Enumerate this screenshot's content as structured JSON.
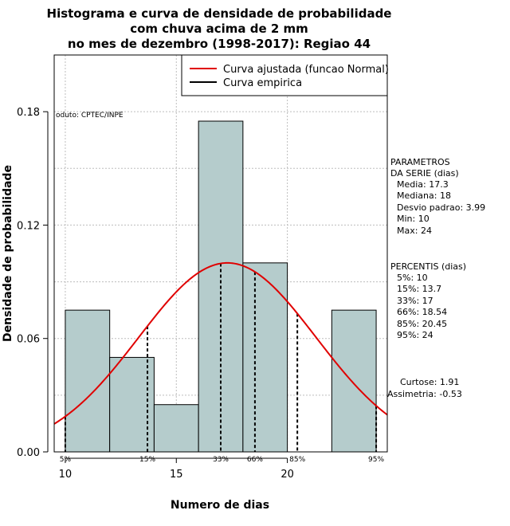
{
  "chart_data": {
    "type": "bar",
    "title_lines": [
      "Histograma e curva de densidade de probabilidade",
      "com chuva acima de 2 mm",
      "no mes de dezembro (1998-2017): Regiao 44"
    ],
    "xlabel": "Numero de dias",
    "ylabel": "Densidade de probabilidade",
    "xlim": [
      9.5,
      24.5
    ],
    "ylim": [
      0,
      0.21
    ],
    "x_ticks": [
      10,
      15,
      20
    ],
    "y_ticks": [
      0.0,
      0.06,
      0.12,
      0.18
    ],
    "y_tick_labels": [
      "0.00",
      "0.06",
      "0.12",
      "0.18"
    ],
    "grid": true,
    "bins": [
      {
        "start": 10,
        "end": 12,
        "density": 0.075
      },
      {
        "start": 12,
        "end": 14,
        "density": 0.05
      },
      {
        "start": 14,
        "end": 16,
        "density": 0.025
      },
      {
        "start": 16,
        "end": 18,
        "density": 0.175
      },
      {
        "start": 18,
        "end": 20,
        "density": 0.1
      },
      {
        "start": 20,
        "end": 22,
        "density": 0
      },
      {
        "start": 22,
        "end": 24,
        "density": 0.075
      }
    ],
    "bar_color": "#b5cccc",
    "curve_color": "#e00000",
    "normal_fit": {
      "mean": 17.3,
      "sd": 3.99
    },
    "percentile_lines": [
      {
        "label": "5%",
        "x": 10
      },
      {
        "label": "15%",
        "x": 13.7
      },
      {
        "label": "33%",
        "x": 17
      },
      {
        "label": "66%",
        "x": 18.54
      },
      {
        "label": "85%",
        "x": 20.45
      },
      {
        "label": "95%",
        "x": 24
      }
    ],
    "legend": {
      "position": "top-right",
      "entries": [
        {
          "label": "Curva ajustada (funcao Normal)",
          "color": "#e00000"
        },
        {
          "label": "Curva empirica",
          "color": "#000000"
        }
      ]
    },
    "source_note": "oduto: CPTEC/INPE"
  },
  "side_panel": {
    "parametros_title": [
      "PARAMETROS",
      "DA SERIE (dias)"
    ],
    "parametros": [
      "Media: 17.3",
      "Mediana: 18",
      "Desvio padrao: 3.99",
      "Min: 10",
      "Max: 24"
    ],
    "percentis_title": "PERCENTIS (dias)",
    "percentis": [
      "5%: 10",
      "15%: 13.7",
      "33%: 17",
      "66%: 18.54",
      "85%: 20.45",
      "95%: 24"
    ],
    "shape": [
      "Curtose: 1.91",
      "Assimetria: -0.53"
    ]
  }
}
